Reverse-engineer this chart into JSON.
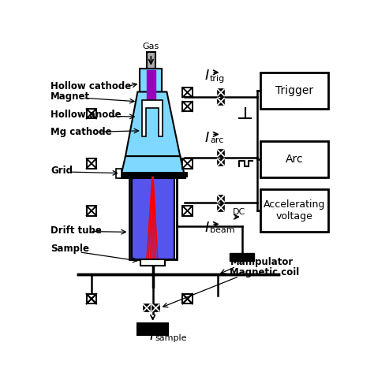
{
  "fig_width": 4.74,
  "fig_height": 4.96,
  "dpi": 100,
  "bg_color": "#ffffff",
  "cyan_light": "#87CEEB",
  "cyan_bright": "#00BFFF",
  "blue_color": "#4169E1",
  "purple_color": "#8B008B",
  "red_color": "#ff0000",
  "black": "#000000",
  "labels": {
    "gas": "Gas",
    "hollow_cathode": "Hollow cathode",
    "magnet": "Magnet",
    "hollow_anode": "Hollow anode",
    "mg_cathode": "Mg cathode",
    "grid": "Grid",
    "drift_tube": "Drift tube",
    "sample": "Sample",
    "trigger": "Trigger",
    "arc": "Arc",
    "accel": "Accelerating\nvoltage",
    "dc": "DC",
    "manipulator": "Manipulator",
    "magnetic_coil": "Magnetic coil"
  }
}
